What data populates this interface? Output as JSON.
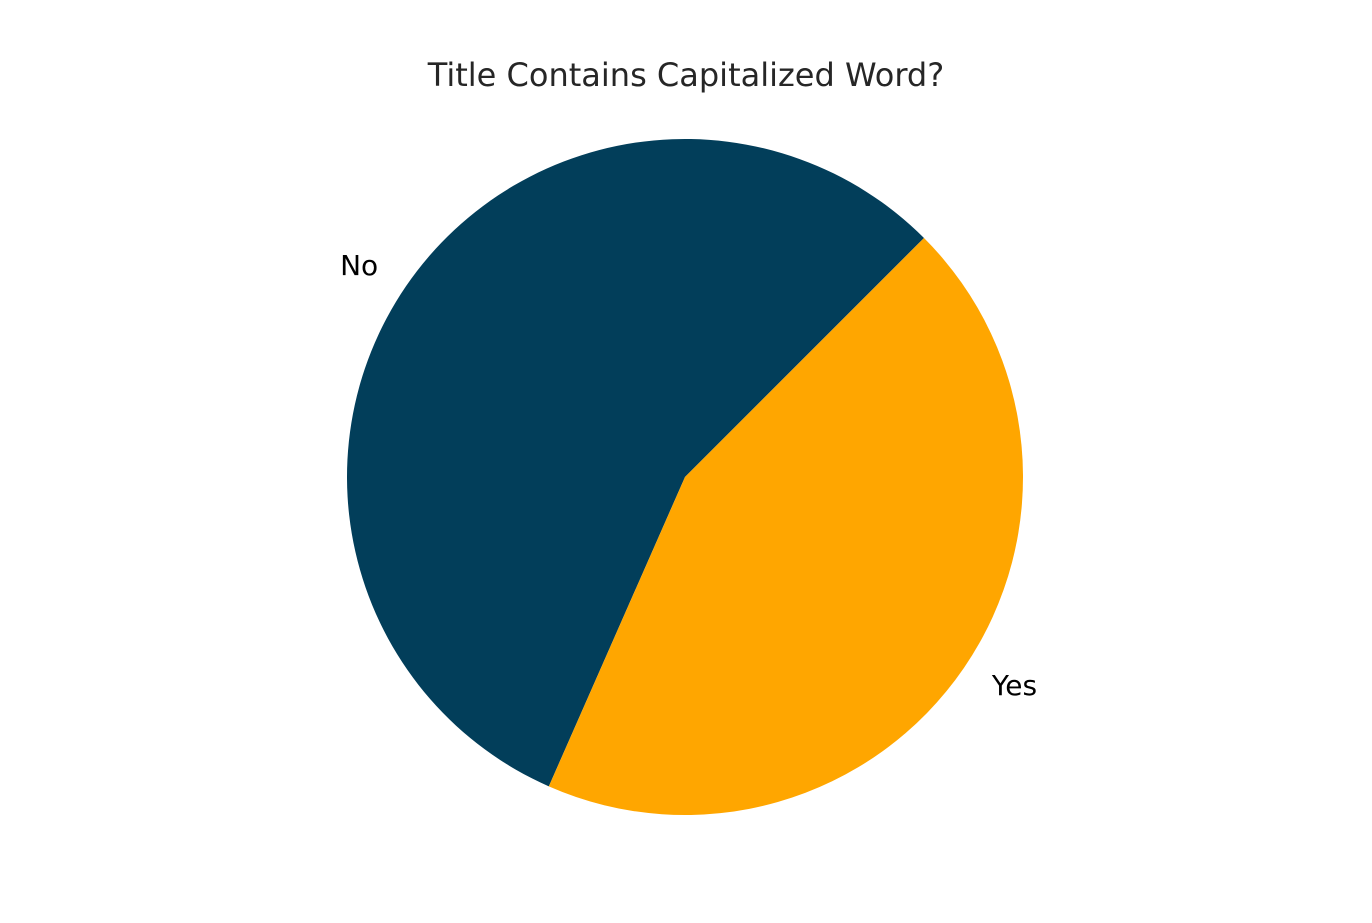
{
  "chart_data": {
    "type": "pie",
    "title": "Title Contains Capitalized Word?",
    "start_angle_deg": 45,
    "direction": "counterclockwise",
    "slices": [
      {
        "label": "No",
        "value": 55.9,
        "color": "#023e5a"
      },
      {
        "label": "Yes",
        "value": 44.1,
        "color": "#ffa600"
      }
    ]
  }
}
